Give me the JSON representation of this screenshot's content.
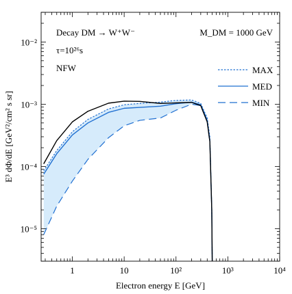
{
  "chart_data": {
    "type": "line",
    "xlabel": "Electron energy E [GeV]",
    "ylabel": "E³ dΦ/dE [GeV²/cm² s sr]",
    "xscale": "log",
    "yscale": "log",
    "xlim": [
      0.25,
      10000
    ],
    "ylim": [
      3e-06,
      0.03
    ],
    "grid": false,
    "legend_position": "right",
    "annotations": {
      "process": "Decay DM → W⁺W⁻",
      "lifetime": "τ=10²⁶s",
      "profile": "NFW",
      "mass": "M_DM = 1000 GeV"
    },
    "x_ticks": [
      {
        "value": 1,
        "label": "1"
      },
      {
        "value": 10,
        "label": "10"
      },
      {
        "value": 100,
        "label": "10²"
      },
      {
        "value": 1000,
        "label": "10³"
      },
      {
        "value": 10000,
        "label": "10⁴"
      }
    ],
    "y_ticks": [
      {
        "value": 1e-05,
        "label": "10⁻⁵"
      },
      {
        "value": 0.0001,
        "label": "10⁻⁴"
      },
      {
        "value": 0.001,
        "label": "10⁻³"
      },
      {
        "value": 0.01,
        "label": "10⁻²"
      }
    ],
    "colors": {
      "band_fill": "#d6ebfb",
      "propagation": "#1f6fd1",
      "reference": "#000000"
    },
    "series": [
      {
        "name": "MAX",
        "style": "dotted",
        "color": "#1f6fd1",
        "x": [
          0.28,
          0.5,
          1,
          2,
          5,
          10,
          20,
          50,
          100,
          200,
          300,
          400,
          450,
          490,
          500
        ],
        "y": [
          8.5e-05,
          0.00018,
          0.00036,
          0.00057,
          0.00084,
          0.00098,
          0.00103,
          0.00108,
          0.00115,
          0.00117,
          0.00103,
          0.0006,
          0.0003,
          2e-05,
          3e-06
        ]
      },
      {
        "name": "MED",
        "style": "solid",
        "color": "#1f6fd1",
        "x": [
          0.28,
          0.5,
          1,
          2,
          5,
          10,
          20,
          50,
          100,
          200,
          300,
          400,
          450,
          490,
          500
        ],
        "y": [
          7.5e-05,
          0.00016,
          0.00032,
          0.0005,
          0.00074,
          0.00086,
          0.00089,
          0.00093,
          0.00102,
          0.00108,
          0.00098,
          0.00055,
          0.00026,
          2e-05,
          3e-06
        ]
      },
      {
        "name": "MIN",
        "style": "dashed",
        "color": "#1f6fd1",
        "x": [
          0.28,
          0.5,
          1,
          2,
          5,
          10,
          20,
          50,
          100,
          200,
          300,
          400,
          450,
          490,
          500
        ],
        "y": [
          8e-06,
          2.3e-05,
          5.8e-05,
          0.00013,
          0.00029,
          0.00045,
          0.00055,
          0.0006,
          0.0008,
          0.001,
          0.00095,
          0.00052,
          0.00024,
          2e-05,
          3e-06
        ]
      },
      {
        "name": "",
        "style": "solid",
        "color": "#000000",
        "x": [
          0.28,
          0.5,
          1,
          2,
          5,
          10,
          20,
          50,
          100,
          200,
          300,
          400,
          450,
          490,
          500
        ],
        "y": [
          0.00011,
          0.00026,
          0.00052,
          0.00077,
          0.00104,
          0.00112,
          0.00111,
          0.00103,
          0.00105,
          0.00107,
          0.00095,
          0.00052,
          0.00025,
          2e-05,
          3e-06
        ]
      }
    ]
  }
}
